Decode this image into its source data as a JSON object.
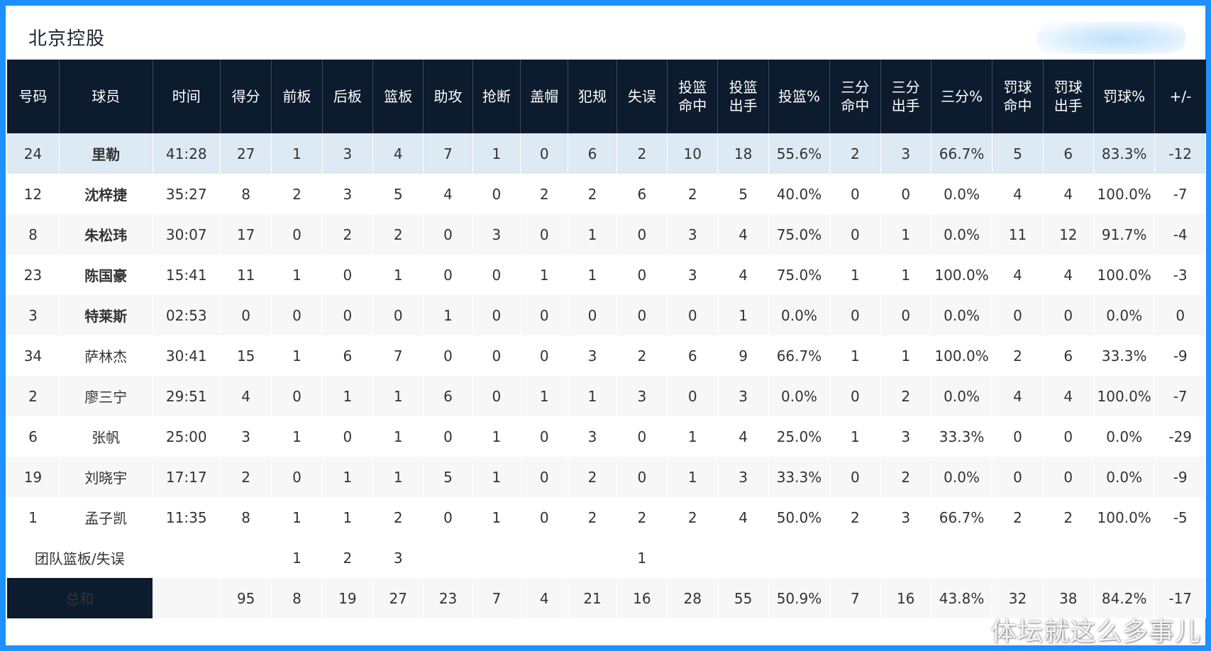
{
  "team_title": "北京控股",
  "headers": [
    "号码",
    "球员",
    "时间",
    "得分",
    "前板",
    "后板",
    "篮板",
    "助攻",
    "抢断",
    "盖帽",
    "犯规",
    "失误",
    "投篮\n命中",
    "投篮\n出手",
    "投篮%",
    "三分\n命中",
    "三分\n出手",
    "三分%",
    "罚球\n命中",
    "罚球\n出手",
    "罚球%",
    "+/-"
  ],
  "players": [
    {
      "starter": true,
      "cells": [
        "24",
        "里勒",
        "41:28",
        "27",
        "1",
        "3",
        "4",
        "7",
        "1",
        "0",
        "6",
        "2",
        "10",
        "18",
        "55.6%",
        "2",
        "3",
        "66.7%",
        "5",
        "6",
        "83.3%",
        "-12"
      ]
    },
    {
      "starter": true,
      "cells": [
        "12",
        "沈梓捷",
        "35:27",
        "8",
        "2",
        "3",
        "5",
        "4",
        "0",
        "2",
        "2",
        "6",
        "2",
        "5",
        "40.0%",
        "0",
        "0",
        "0.0%",
        "4",
        "4",
        "100.0%",
        "-7"
      ]
    },
    {
      "starter": true,
      "cells": [
        "8",
        "朱松玮",
        "30:07",
        "17",
        "0",
        "2",
        "2",
        "0",
        "3",
        "0",
        "1",
        "0",
        "3",
        "4",
        "75.0%",
        "0",
        "1",
        "0.0%",
        "11",
        "12",
        "91.7%",
        "-4"
      ]
    },
    {
      "starter": true,
      "cells": [
        "23",
        "陈国豪",
        "15:41",
        "11",
        "1",
        "0",
        "1",
        "0",
        "0",
        "1",
        "1",
        "0",
        "3",
        "4",
        "75.0%",
        "1",
        "1",
        "100.0%",
        "4",
        "4",
        "100.0%",
        "-3"
      ]
    },
    {
      "starter": true,
      "cells": [
        "3",
        "特莱斯",
        "02:53",
        "0",
        "0",
        "0",
        "0",
        "1",
        "0",
        "0",
        "0",
        "0",
        "0",
        "1",
        "0.0%",
        "0",
        "0",
        "0.0%",
        "0",
        "0",
        "0.0%",
        "0"
      ]
    },
    {
      "starter": false,
      "cells": [
        "34",
        "萨林杰",
        "30:41",
        "15",
        "1",
        "6",
        "7",
        "0",
        "0",
        "0",
        "3",
        "2",
        "6",
        "9",
        "66.7%",
        "1",
        "1",
        "100.0%",
        "2",
        "6",
        "33.3%",
        "-9"
      ]
    },
    {
      "starter": false,
      "cells": [
        "2",
        "廖三宁",
        "29:51",
        "4",
        "0",
        "1",
        "1",
        "6",
        "0",
        "1",
        "1",
        "3",
        "0",
        "3",
        "0.0%",
        "0",
        "2",
        "0.0%",
        "4",
        "4",
        "100.0%",
        "-7"
      ]
    },
    {
      "starter": false,
      "cells": [
        "6",
        "张帆",
        "25:00",
        "3",
        "1",
        "0",
        "1",
        "0",
        "1",
        "0",
        "3",
        "0",
        "1",
        "4",
        "25.0%",
        "1",
        "3",
        "33.3%",
        "0",
        "0",
        "0.0%",
        "-29"
      ]
    },
    {
      "starter": false,
      "cells": [
        "19",
        "刘晓宇",
        "17:17",
        "2",
        "0",
        "1",
        "1",
        "5",
        "1",
        "0",
        "2",
        "0",
        "1",
        "3",
        "33.3%",
        "0",
        "2",
        "0.0%",
        "0",
        "0",
        "0.0%",
        "-9"
      ]
    },
    {
      "starter": false,
      "cells": [
        "1",
        "孟子凯",
        "11:35",
        "8",
        "1",
        "1",
        "2",
        "0",
        "1",
        "0",
        "2",
        "2",
        "2",
        "4",
        "50.0%",
        "2",
        "3",
        "66.7%",
        "2",
        "2",
        "100.0%",
        "-5"
      ]
    }
  ],
  "team_row": {
    "label": "团队篮板/失误",
    "off_reb": "1",
    "def_reb": "2",
    "reb": "3",
    "turnovers": "1"
  },
  "total_row": {
    "label": "总和",
    "cells": [
      "95",
      "8",
      "19",
      "27",
      "23",
      "7",
      "4",
      "21",
      "16",
      "28",
      "55",
      "50.9%",
      "7",
      "16",
      "43.8%",
      "32",
      "38",
      "84.2%",
      "-17"
    ]
  },
  "watermark": "体坛就这么多事儿"
}
